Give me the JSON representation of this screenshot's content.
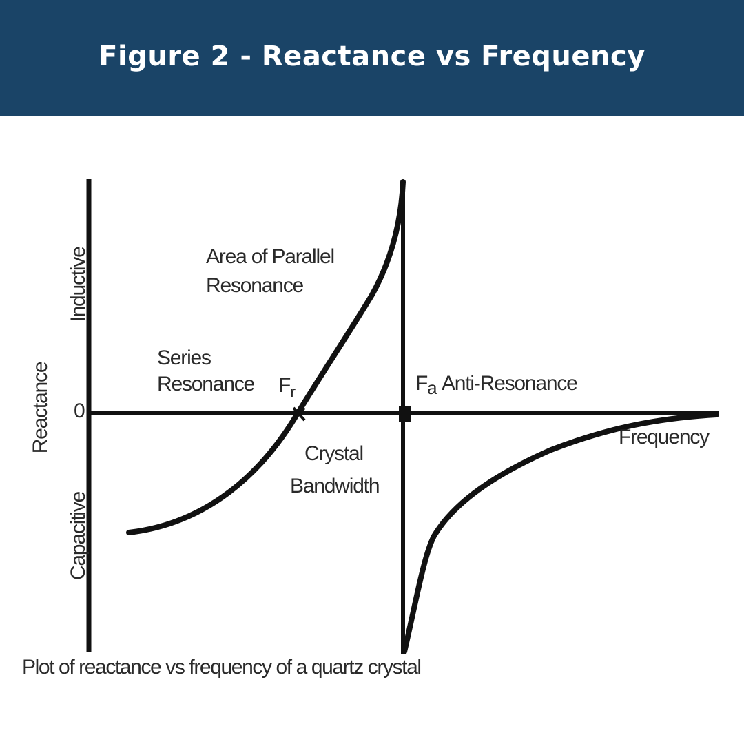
{
  "banner": {
    "title": "Figure 2 - Reactance vs Frequency",
    "background": "#1a4467",
    "text_color": "#ffffff"
  },
  "diagram": {
    "y_axis_label": "Reactance",
    "inductive_label": "Inductive",
    "capacitive_label": "Capacitive",
    "zero_label": "0",
    "x_axis_label": "Frequency",
    "parallel_label_line1": "Area of Parallel",
    "parallel_label_line2": "Resonance",
    "series_label_line1": "Series",
    "series_label_line2": "Resonance",
    "fr_main": "F",
    "fr_sub": "r",
    "fa_main": "F",
    "fa_sub": "a",
    "anti_resonance_label": "Anti-Resonance",
    "bandwidth_line1": "Crystal",
    "bandwidth_line2": "Bandwidth",
    "caption": "Plot of reactance vs frequency of a quartz crystal",
    "line_color": "#111111"
  }
}
